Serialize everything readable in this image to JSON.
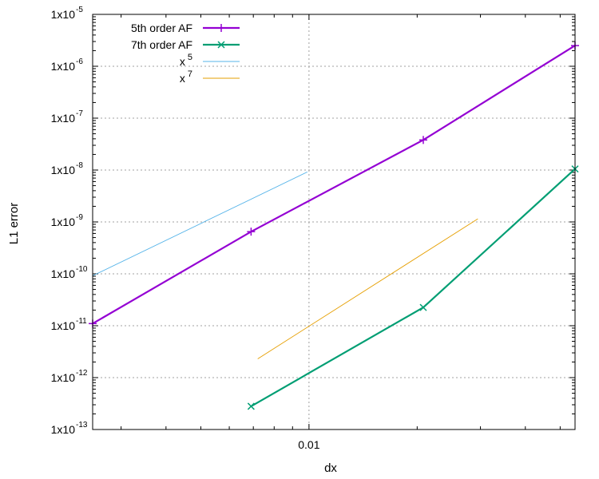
{
  "chart_data": {
    "type": "line",
    "title": "",
    "xlabel": "dx",
    "ylabel": "L1 error",
    "x_scale": "log",
    "y_scale": "log",
    "xlim": [
      0.0025,
      0.055
    ],
    "ylim": [
      1e-13,
      1e-05
    ],
    "grid": true,
    "legend_position": "top-left",
    "x_ticks": [
      {
        "value": 0.01,
        "label": "0.01"
      }
    ],
    "y_ticks": [
      {
        "value": 1e-13,
        "base": "1x10",
        "exp": "-13"
      },
      {
        "value": 1e-12,
        "base": "1x10",
        "exp": "-12"
      },
      {
        "value": 1e-11,
        "base": "1x10",
        "exp": "-11"
      },
      {
        "value": 1e-10,
        "base": "1x10",
        "exp": "-10"
      },
      {
        "value": 1e-09,
        "base": "1x10",
        "exp": "-9"
      },
      {
        "value": 1e-08,
        "base": "1x10",
        "exp": "-8"
      },
      {
        "value": 1e-07,
        "base": "1x10",
        "exp": "-7"
      },
      {
        "value": 1e-06,
        "base": "1x10",
        "exp": "-6"
      },
      {
        "value": 1e-05,
        "base": "1x10",
        "exp": "-5"
      }
    ],
    "series": [
      {
        "name": "5th order AF",
        "color": "#9400d3",
        "marker": "plus",
        "points": [
          [
            0.0025,
            1.1e-11
          ],
          [
            0.0069,
            6.5e-10
          ],
          [
            0.0208,
            3.8e-08
          ],
          [
            0.055,
            2.5e-06
          ]
        ]
      },
      {
        "name": "7th order AF",
        "color": "#009e73",
        "marker": "cross",
        "points": [
          [
            0.0069,
            2.8e-13
          ],
          [
            0.0208,
            2.25e-11
          ],
          [
            0.055,
            1.05e-08
          ]
        ]
      },
      {
        "name": "x",
        "name_sup": "5",
        "color": "#56b4e9",
        "marker": "none",
        "points": [
          [
            0.0025,
            9.2e-11
          ],
          [
            0.0099,
            9.2e-09
          ]
        ]
      },
      {
        "name": "x",
        "name_sup": "7",
        "color": "#e69f00",
        "marker": "none",
        "points": [
          [
            0.0072,
            2.3e-12
          ],
          [
            0.0295,
            1.15e-09
          ]
        ]
      }
    ]
  }
}
